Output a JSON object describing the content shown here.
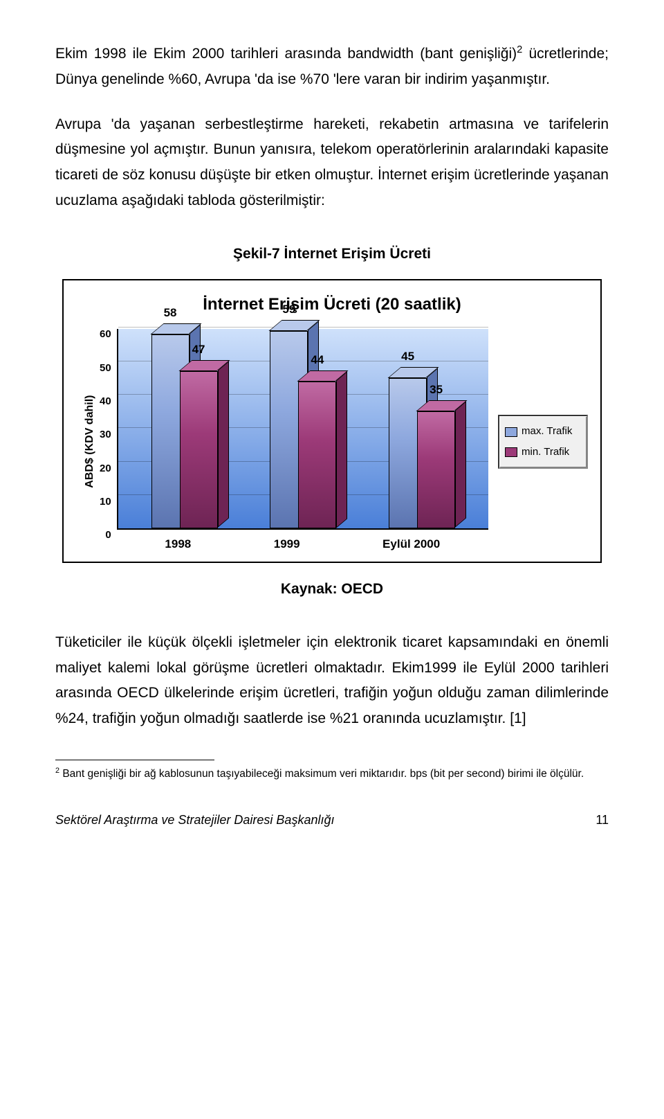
{
  "paragraphs": {
    "p1_pre": "Ekim 1998 ile Ekim 2000 tarihleri arasında bandwidth (bant genişliği)",
    "p1_sup": "2",
    "p1_post": " ücretlerinde; Dünya genelinde %60, Avrupa 'da ise %70 'lere varan bir indirim yaşanmıştır.",
    "p2": "Avrupa 'da yaşanan serbestleştirme hareketi, rekabetin artmasına ve tarifelerin düşmesine yol açmıştır. Bunun yanısıra, telekom operatörlerinin aralarındaki kapasite ticareti de söz konusu düşüşte bir etken olmuştur. İnternet erişim ücretlerinde yaşanan ucuzlama aşağıdaki tabloda gösterilmiştir:",
    "p3": "Tüketiciler ile küçük ölçekli işletmeler için elektronik ticaret kapsamındaki en önemli maliyet kalemi lokal görüşme ücretleri olmaktadır. Ekim1999 ile Eylül 2000 tarihleri arasında OECD ülkelerinde erişim ücretleri, trafiğin yoğun olduğu zaman dilimlerinde %24, trafiğin yoğun olmadığı saatlerde ise %21 oranında ucuzlamıştır. [1]"
  },
  "chart": {
    "title": "Şekil-7 İnternet Erişim Ücreti",
    "inner_title": "İnternet Erişim Ücreti (20 saatlik)",
    "y_axis_label": "ABD$ (KDV dahil)",
    "y_ticks": [
      "0",
      "10",
      "20",
      "30",
      "40",
      "50",
      "60"
    ],
    "y_max": 60,
    "categories": [
      "1998",
      "1999",
      "Eylül 2000"
    ],
    "series": [
      {
        "name": "max. Trafik",
        "front": "#8ea8de",
        "top": "#b8c9eb",
        "side": "#5b74b0"
      },
      {
        "name": "min. Trafik",
        "front": "#9c3a78",
        "top": "#c06aa3",
        "side": "#6e2454"
      }
    ],
    "data": {
      "max": [
        58,
        59,
        45
      ],
      "min": [
        47,
        44,
        35
      ]
    },
    "bg_gradient": {
      "top": "#cfe1fb",
      "bottom": "#4a7fd8"
    },
    "source": "Kaynak: OECD"
  },
  "footnote": {
    "marker": "2",
    "text": " Bant genişliği bir ağ kablosunun taşıyabileceği maksimum veri miktarıdır. bps (bit per second) birimi ile ölçülür."
  },
  "footer": {
    "left": "Sektörel Araştırma ve Stratejiler Dairesi Başkanlığı",
    "page": "11"
  }
}
